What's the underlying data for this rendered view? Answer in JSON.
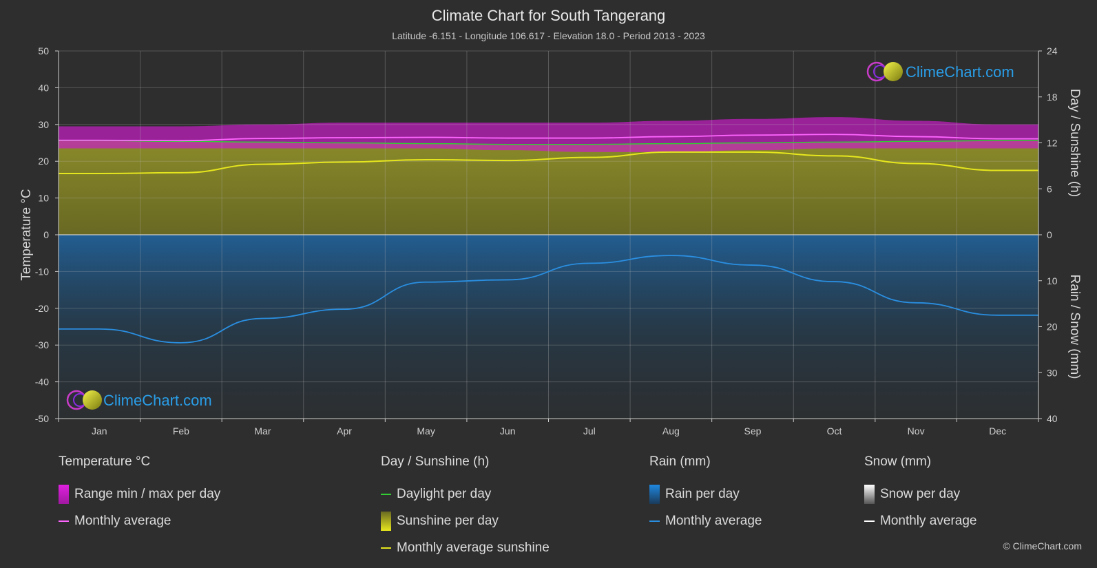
{
  "header": {
    "title": "Climate Chart for South Tangerang",
    "subtitle": "Latitude -6.151 - Longitude 106.617 - Elevation 18.0 - Period 2013 - 2023"
  },
  "watermark": "ClimeChart.com",
  "copyright": "© ClimeChart.com",
  "legend": {
    "temperature": {
      "title": "Temperature °C",
      "range": "Range min / max per day",
      "avg": "Monthly average"
    },
    "sun": {
      "title": "Day / Sunshine (h)",
      "daylight": "Daylight per day",
      "sunshine": "Sunshine per day",
      "avg": "Monthly average sunshine"
    },
    "rain": {
      "title": "Rain (mm)",
      "per_day": "Rain per day",
      "avg": "Monthly average"
    },
    "snow": {
      "title": "Snow (mm)",
      "per_day": "Snow per day",
      "avg": "Monthly average"
    }
  },
  "colors": {
    "background": "#2e2e2e",
    "temp_range": "#c81ec8",
    "temp_avg": "#ff66ff",
    "daylight": "#33cc33",
    "sunshine_fill": "#8c8c28",
    "sunshine_avg": "#e6e61e",
    "rain": "#1e78c8",
    "rain_avg": "#2a8ee0",
    "snow": "#ffffff"
  },
  "chart_data": {
    "type": "line",
    "categories": [
      "Jan",
      "Feb",
      "Mar",
      "Apr",
      "May",
      "Jun",
      "Jul",
      "Aug",
      "Sep",
      "Oct",
      "Nov",
      "Dec"
    ],
    "left_axis": {
      "label": "Temperature °C",
      "ylim": [
        -50,
        50
      ],
      "ticks": [
        50,
        40,
        30,
        20,
        10,
        0,
        -10,
        -20,
        -30,
        -40,
        -50
      ]
    },
    "right_axis_top": {
      "label": "Day / Sunshine (h)",
      "ylim": [
        0,
        24
      ],
      "ticks": [
        24,
        18,
        12,
        6,
        0
      ]
    },
    "right_axis_bottom": {
      "label": "Rain / Snow (mm)",
      "ylim": [
        0,
        40
      ],
      "ticks": [
        0,
        10,
        20,
        30,
        40
      ]
    },
    "series": [
      {
        "name": "Temperature max (range)",
        "axis": "left",
        "values": [
          29.5,
          29.5,
          30.0,
          30.5,
          30.5,
          30.5,
          30.5,
          31.0,
          31.5,
          32.0,
          31.0,
          30.0
        ]
      },
      {
        "name": "Temperature min (range)",
        "axis": "left",
        "values": [
          23.5,
          23.5,
          23.5,
          23.5,
          23.5,
          23.0,
          22.5,
          22.5,
          23.0,
          23.5,
          23.5,
          23.5
        ]
      },
      {
        "name": "Monthly average",
        "axis": "left",
        "values": [
          25.7,
          25.6,
          26.2,
          26.4,
          26.5,
          26.3,
          26.3,
          26.7,
          27.1,
          27.3,
          26.7,
          26.1
        ]
      },
      {
        "name": "Daylight per day",
        "axis": "right_top",
        "values": [
          12.3,
          12.2,
          12.1,
          12.0,
          11.9,
          11.8,
          11.8,
          11.9,
          12.0,
          12.1,
          12.2,
          12.3
        ]
      },
      {
        "name": "Monthly average sunshine",
        "axis": "right_top",
        "values": [
          8.0,
          8.1,
          9.2,
          9.5,
          9.8,
          9.7,
          10.1,
          10.8,
          10.8,
          10.3,
          9.3,
          8.4
        ]
      },
      {
        "name": "Rain monthly average",
        "axis": "right_bottom",
        "values": [
          20.5,
          23.5,
          18.2,
          16.2,
          10.3,
          9.8,
          6.2,
          4.5,
          6.6,
          10.2,
          14.8,
          17.5
        ]
      }
    ]
  }
}
